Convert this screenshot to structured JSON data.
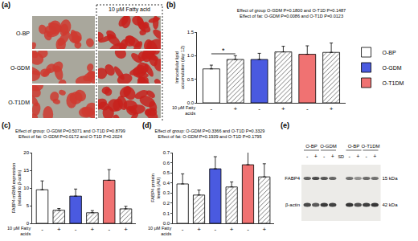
{
  "panels": {
    "a": {
      "label": "(a)",
      "column_header": "10 μM Fatty acid",
      "rows": [
        "O-BP",
        "O-GDM",
        "O-T1DM"
      ]
    },
    "e": {
      "label": "(e)",
      "groups": [
        "O-BP",
        "O-GDM",
        "O-BP",
        "O-T1DM"
      ],
      "lanes": [
        "-",
        "+",
        "-",
        "+",
        "SD",
        "-",
        "+",
        "-",
        "+"
      ],
      "bands": [
        {
          "name": "FABP4",
          "size": "15 kDa"
        },
        {
          "name": "β-actin",
          "size": "42 kDa"
        }
      ]
    }
  },
  "chart_data": [
    {
      "label": "(b)",
      "type": "bar",
      "title": "Effect of group O-GDM P=0.1800 and O-T1D P=0.1487",
      "subtitle": "Effect of fat: O-GDM P=0.0086 and O-T1D P=0.0123",
      "x_label": "10 μM Fatty acids",
      "y_label": "Intracellular lipid accumulation (day 12)",
      "categories": [
        "-",
        "+",
        "-",
        "+",
        "-",
        "+"
      ],
      "series": [
        {
          "name": "O-BP",
          "color": "#ffffff",
          "values": [
            0.72,
            0.92,
            null,
            null,
            null,
            null
          ],
          "errors": [
            0.08,
            0.08,
            null,
            null,
            null,
            null
          ]
        },
        {
          "name": "O-GDM",
          "color": "#4a5ae0",
          "values": [
            null,
            null,
            0.92,
            1.08,
            null,
            null
          ],
          "errors": [
            null,
            null,
            0.13,
            0.12,
            null,
            null
          ]
        },
        {
          "name": "O-T1DM",
          "color": "#f07272",
          "values": [
            null,
            null,
            null,
            null,
            1.03,
            1.07
          ],
          "errors": [
            null,
            null,
            null,
            null,
            0.18,
            0.2
          ]
        }
      ],
      "ylim": [
        0,
        1.5
      ],
      "yticks": [
        {
          "value": 0,
          "label": "0.0"
        },
        {
          "value": 0.5,
          "label": "0.5"
        },
        {
          "value": 1,
          "label": "1.0"
        },
        {
          "value": 1.5,
          "label": "1.5"
        }
      ],
      "legend": "right",
      "annotations": [
        {
          "text": "*",
          "between": [
            0,
            1
          ],
          "y": 1.04
        }
      ]
    },
    {
      "label": "(c)",
      "type": "bar",
      "title": "Effect of group: O-GDM P=0.5071 and O-T1D P=0.8799",
      "subtitle": "Effect of fat: O-GDM P=0.0172 and O-T1D P=0.2024",
      "x_label": "10 μM Fatty acids",
      "y_label": "FABP4 mRNA expression (related to β-actin)",
      "categories": [
        "-",
        "+",
        "-",
        "+",
        "-",
        "+"
      ],
      "series": [
        {
          "name": "O-BP",
          "color": "#ffffff",
          "values": [
            9.5,
            3.7,
            null,
            null,
            null,
            null
          ],
          "errors": [
            2.5,
            0.5,
            null,
            null,
            null,
            null
          ]
        },
        {
          "name": "O-GDM",
          "color": "#4a5ae0",
          "values": [
            null,
            null,
            7.7,
            3.0,
            null,
            null
          ],
          "errors": [
            null,
            null,
            2.0,
            0.6,
            null,
            null
          ]
        },
        {
          "name": "O-T1DM",
          "color": "#f07272",
          "values": [
            null,
            null,
            null,
            null,
            12.2,
            4.1
          ],
          "errors": [
            null,
            null,
            null,
            null,
            3.0,
            0.7
          ]
        }
      ],
      "ylim": [
        0,
        20
      ],
      "yticks": [
        0,
        5,
        10,
        15,
        20
      ]
    },
    {
      "label": "(d)",
      "type": "bar",
      "title": "Effect of group: O-GDM P=0.3366 and O-T1D P=0.3329",
      "subtitle": "Effect of fat: O-GDM P=0.1939 and O-T1D P=0.1795",
      "x_label": "10 μM Fatty acids",
      "y_label": "FABP4 protein levels (AU)",
      "categories": [
        "-",
        "+",
        "-",
        "+",
        "-",
        "+"
      ],
      "series": [
        {
          "name": "O-BP",
          "color": "#ffffff",
          "values": [
            0.39,
            0.28,
            null,
            null,
            null,
            null
          ],
          "errors": [
            0.1,
            0.05,
            null,
            null,
            null,
            null
          ]
        },
        {
          "name": "O-GDM",
          "color": "#4a5ae0",
          "values": [
            null,
            null,
            0.54,
            0.36,
            null,
            null
          ],
          "errors": [
            null,
            null,
            0.12,
            0.05,
            null,
            null
          ]
        },
        {
          "name": "O-T1DM",
          "color": "#f07272",
          "values": [
            null,
            null,
            null,
            null,
            0.58,
            0.46
          ],
          "errors": [
            null,
            null,
            null,
            null,
            0.14,
            0.13
          ]
        }
      ],
      "ylim": [
        0,
        0.7
      ],
      "yticks": [
        {
          "value": 0,
          "label": "0.0"
        },
        {
          "value": 0.1,
          "label": "0.1"
        },
        {
          "value": 0.2,
          "label": "0.2"
        },
        {
          "value": 0.3,
          "label": "0.3"
        },
        {
          "value": 0.4,
          "label": "0.4"
        },
        {
          "value": 0.5,
          "label": "0.5"
        },
        {
          "value": 0.6,
          "label": "0.6"
        },
        {
          "value": 0.7,
          "label": "0.7"
        }
      ]
    }
  ]
}
